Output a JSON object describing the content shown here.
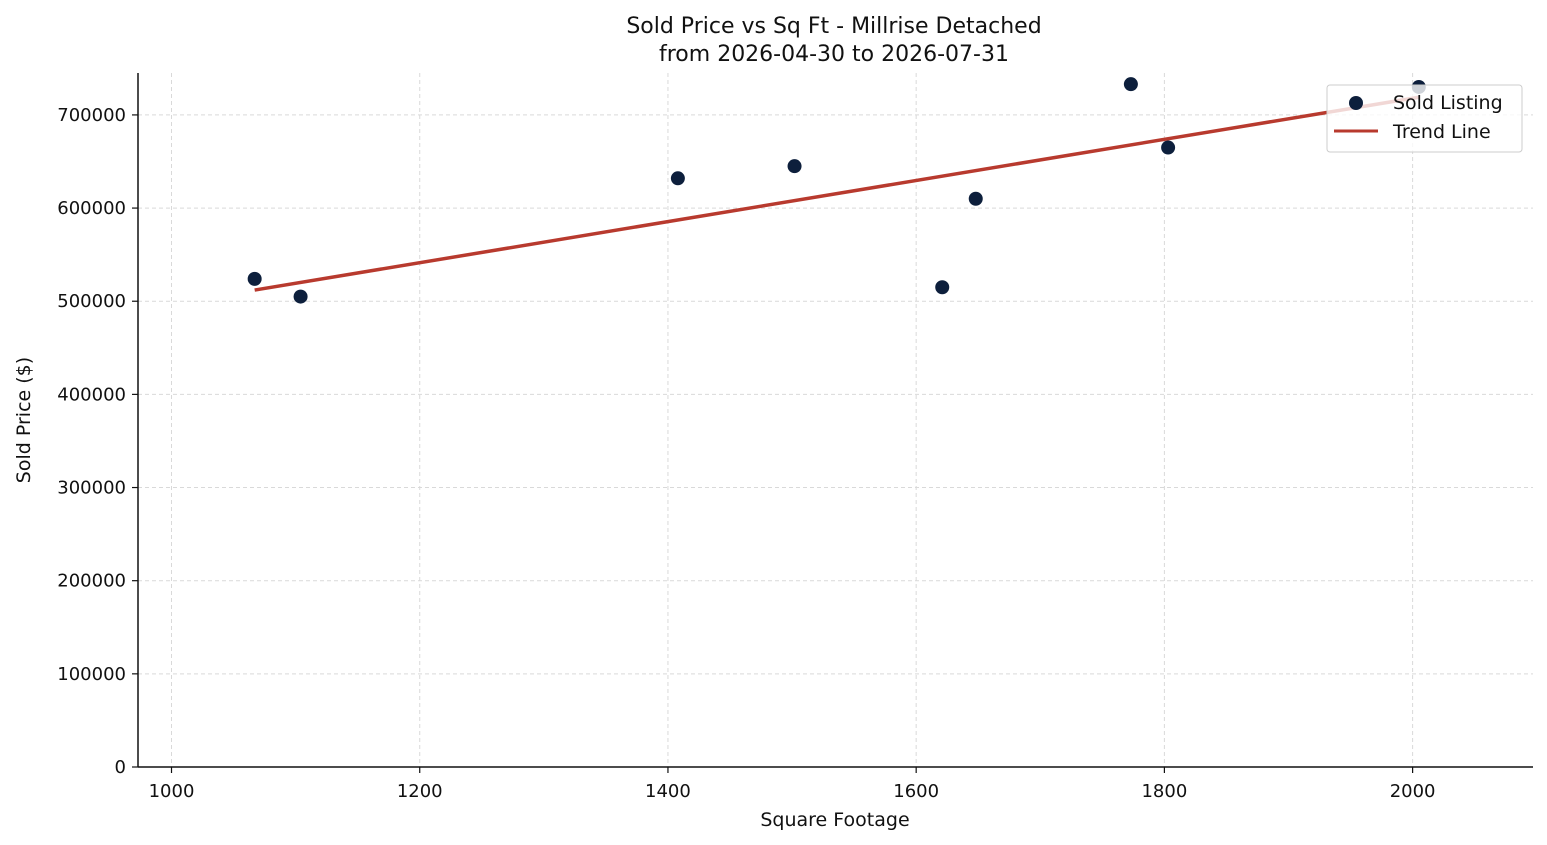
{
  "chart_data": {
    "type": "scatter",
    "title_line1": "Sold Price vs Sq Ft - Millrise Detached",
    "title_line2": "from 2026-04-30 to 2026-07-31",
    "xlabel": "Square Footage",
    "ylabel": "Sold Price ($)",
    "xlim": [
      973,
      2097
    ],
    "ylim": [
      0,
      745000
    ],
    "xticks": [
      1000,
      1200,
      1400,
      1600,
      1800,
      2000
    ],
    "yticks": [
      0,
      100000,
      200000,
      300000,
      400000,
      500000,
      600000,
      700000
    ],
    "grid": true,
    "legend_position": "top-right",
    "series": [
      {
        "name": "Sold Listing",
        "kind": "scatter",
        "color": "#0d1f3c",
        "points": [
          {
            "x": 1067,
            "y": 524000
          },
          {
            "x": 1104,
            "y": 505000
          },
          {
            "x": 1408,
            "y": 632000
          },
          {
            "x": 1502,
            "y": 645000
          },
          {
            "x": 1621,
            "y": 515000
          },
          {
            "x": 1648,
            "y": 610000
          },
          {
            "x": 1773,
            "y": 733000
          },
          {
            "x": 1803,
            "y": 665000
          },
          {
            "x": 2005,
            "y": 730000
          }
        ]
      },
      {
        "name": "Trend Line",
        "kind": "line",
        "color": "#b83a2e",
        "points": [
          {
            "x": 1067,
            "y": 512000
          },
          {
            "x": 2005,
            "y": 719000
          }
        ]
      }
    ]
  }
}
